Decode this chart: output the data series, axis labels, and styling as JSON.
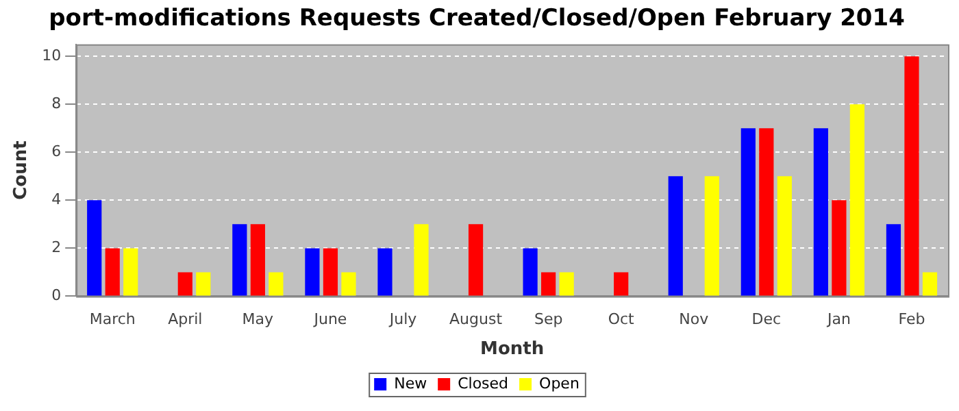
{
  "chart_data": {
    "type": "bar",
    "title": "port-modifications Requests Created/Closed/Open February 2014",
    "xlabel": "Month",
    "ylabel": "Count",
    "categories": [
      "March",
      "April",
      "May",
      "June",
      "July",
      "August",
      "Sep",
      "Oct",
      "Nov",
      "Dec",
      "Jan",
      "Feb"
    ],
    "series": [
      {
        "name": "New",
        "color": "#0000ff",
        "values": [
          4,
          0,
          3,
          2,
          2,
          0,
          2,
          0,
          5,
          7,
          7,
          3
        ]
      },
      {
        "name": "Closed",
        "color": "#ff0000",
        "values": [
          2,
          1,
          3,
          2,
          0,
          3,
          1,
          1,
          0,
          7,
          4,
          10
        ]
      },
      {
        "name": "Open",
        "color": "#ffff00",
        "values": [
          2,
          1,
          1,
          1,
          3,
          0,
          1,
          0,
          5,
          5,
          8,
          1
        ]
      }
    ],
    "ylim": [
      0,
      10.5
    ],
    "yticks": [
      0,
      2,
      4,
      6,
      8,
      10
    ],
    "grid": "y",
    "legend": "bottom"
  }
}
